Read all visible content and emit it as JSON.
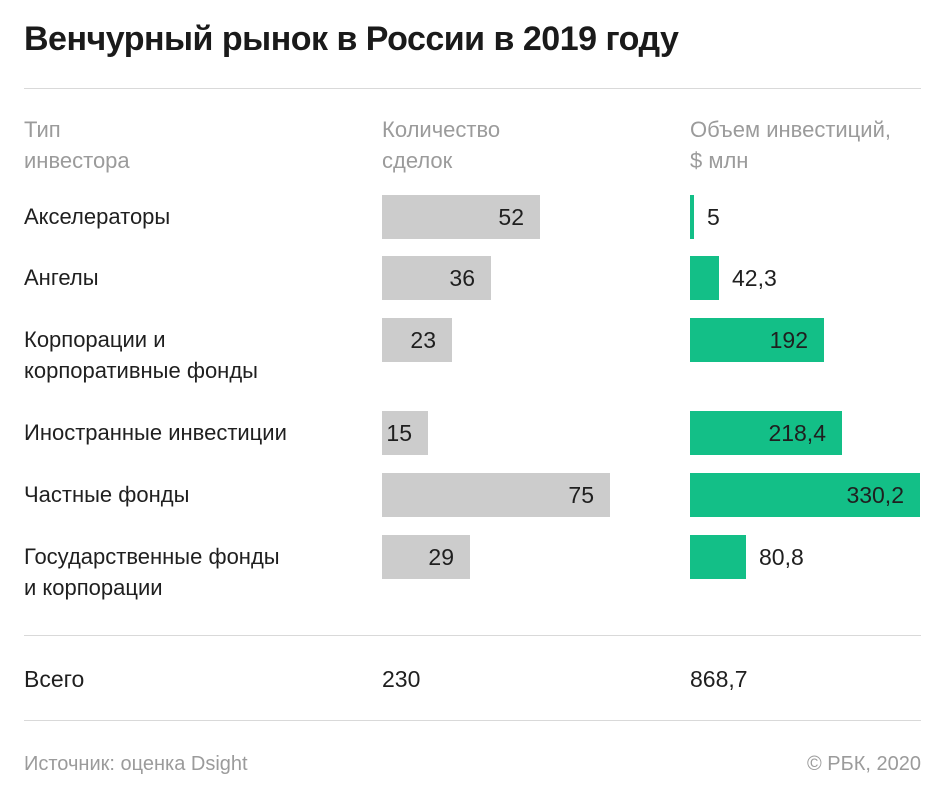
{
  "title": "Венчурный рынок в России в 2019 году",
  "headers": {
    "type": "Тип\nинвестора",
    "count": "Количество\nсделок",
    "volume": "Объем инвестиций,\n$ млн"
  },
  "chart_data": {
    "type": "bar",
    "title": "Венчурный рынок в России в 2019 году",
    "categories": [
      "Акселераторы",
      "Ангелы",
      "Корпорации и\nкорпоративные фонды",
      "Иностранные инвестиции",
      "Частные фонды",
      "Государственные фонды\nи корпорации"
    ],
    "series": [
      {
        "name": "Количество сделок",
        "values": [
          52,
          36,
          23,
          15,
          75,
          29
        ],
        "labels": [
          "52",
          "36",
          "23",
          "15",
          "75",
          "29"
        ],
        "color": "#cccccc"
      },
      {
        "name": "Объем инвестиций, $ млн",
        "values": [
          5,
          42.3,
          192,
          218.4,
          330.2,
          80.8
        ],
        "labels": [
          "5",
          "42,3",
          "192",
          "218,4",
          "330,2",
          "80,8"
        ],
        "color": "#13bf87"
      }
    ]
  },
  "total": {
    "label": "Всего",
    "count": "230",
    "volume": "868,7"
  },
  "footer": {
    "source": "Источник: оценка Dsight",
    "copyright": "© РБК, 2020"
  }
}
